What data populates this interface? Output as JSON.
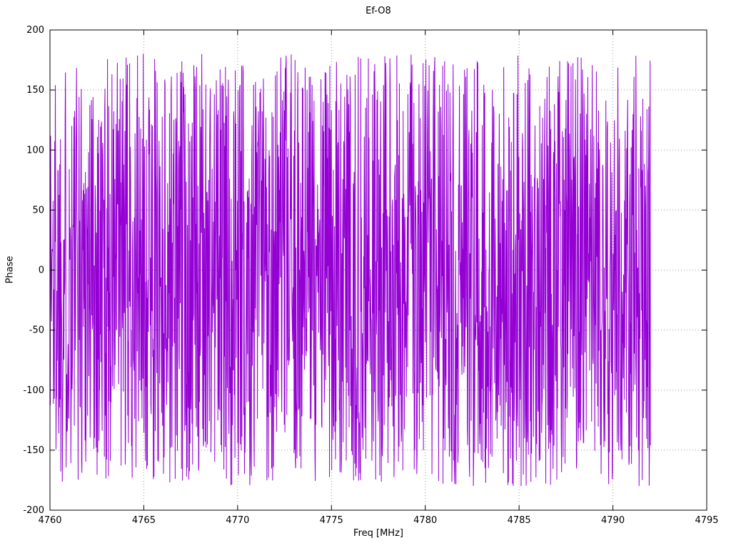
{
  "chart_data": {
    "type": "line",
    "title": "Ef-O8",
    "xlabel": "Freq [MHz]",
    "ylabel": "Phase",
    "xlim": [
      4760,
      4795
    ],
    "ylim": [
      -200,
      200
    ],
    "x_ticks": [
      4760,
      4765,
      4770,
      4775,
      4780,
      4785,
      4790,
      4795
    ],
    "y_ticks": [
      -200,
      -150,
      -100,
      -50,
      0,
      50,
      100,
      150,
      200
    ],
    "grid": true,
    "grid_style": "dotted",
    "legend": false,
    "line_color": "#9400d3",
    "border_color": "#000000",
    "background_color": "#ffffff",
    "series": [
      {
        "name": "phase",
        "description": "Dense wrapped interferometric phase trace, values approximately uniformly distributed between -180 and +180 degrees, spanning 4760 to 4792 MHz",
        "data_x_range": [
          4760.0,
          4792.0
        ],
        "data_y_range": [
          -180,
          180
        ],
        "n_points": 1900,
        "seed": 1337
      }
    ]
  }
}
